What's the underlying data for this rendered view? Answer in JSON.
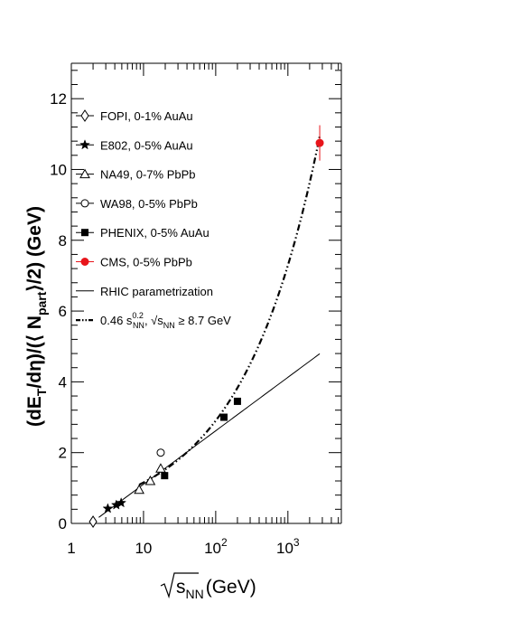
{
  "chart_data": {
    "type": "scatter",
    "title": "",
    "xlabel": "√s_NN (GeV)",
    "xlabel_parts": {
      "root": "s",
      "sub": "NN",
      "unit": "(GeV)"
    },
    "ylabel": "(dE_T/dη)/(⟨N_part⟩/2) (GeV)",
    "ylabel_parts": {
      "a": "(dE",
      "a_sub": "T",
      "b": "/dη)/(⟨ N",
      "b_sub": "part",
      "c": "⟩/2) (GeV)"
    },
    "xscale": "log",
    "xlim": [
      1,
      5500
    ],
    "ylim": [
      0,
      13
    ],
    "x_ticks": [
      {
        "value": 1,
        "label": "1"
      },
      {
        "value": 10,
        "label": "10"
      },
      {
        "value": 100,
        "label": "10",
        "exp": "2"
      },
      {
        "value": 1000,
        "label": "10",
        "exp": "3"
      }
    ],
    "y_ticks": [
      {
        "value": 0,
        "label": "0"
      },
      {
        "value": 2,
        "label": "2"
      },
      {
        "value": 4,
        "label": "4"
      },
      {
        "value": 6,
        "label": "6"
      },
      {
        "value": 8,
        "label": "8"
      },
      {
        "value": 10,
        "label": "10"
      },
      {
        "value": 12,
        "label": "12"
      }
    ],
    "grid": false,
    "legend_position": "top-left",
    "series": [
      {
        "name": "FOPI, 0-1% AuAu",
        "marker": "open-diamond",
        "color": "#000000",
        "points": [
          {
            "x": 2.0,
            "y": 0.05
          }
        ]
      },
      {
        "name": "E802, 0-5% AuAu",
        "marker": "star",
        "color": "#000000",
        "points": [
          {
            "x": 3.2,
            "y": 0.42
          },
          {
            "x": 4.2,
            "y": 0.52
          },
          {
            "x": 4.9,
            "y": 0.58
          }
        ]
      },
      {
        "name": "NA49, 0-7% PbPb",
        "marker": "open-triangle",
        "color": "#000000",
        "points": [
          {
            "x": 8.7,
            "y": 0.95
          },
          {
            "x": 12.4,
            "y": 1.2
          },
          {
            "x": 17.3,
            "y": 1.55
          }
        ]
      },
      {
        "name": "WA98, 0-5% PbPb",
        "marker": "open-circle",
        "color": "#000000",
        "points": [
          {
            "x": 17.3,
            "y": 2.0
          }
        ]
      },
      {
        "name": "PHENIX, 0-5% AuAu",
        "marker": "filled-square",
        "color": "#000000",
        "points": [
          {
            "x": 19.6,
            "y": 1.35
          },
          {
            "x": 130,
            "y": 3.0
          },
          {
            "x": 200,
            "y": 3.45
          }
        ]
      },
      {
        "name": "CMS, 0-5% PbPb",
        "marker": "filled-circle",
        "color": "#e8151b",
        "points": [
          {
            "x": 2760,
            "y": 10.75,
            "err": 0.5
          }
        ]
      }
    ],
    "curves": [
      {
        "name": "RHIC parametrization",
        "style": "solid",
        "color": "#000000",
        "function": "linear-in-ln",
        "slope": 0.656,
        "intercept": -0.404,
        "x_range": [
          2.4,
          2760
        ]
      },
      {
        "name_parts": {
          "a": "0.46 s",
          "a_exp": "0.2",
          "a_sub": "NN",
          "b": ", √s",
          "b_sub": "NN",
          "c": " ≥ 8.7 GeV"
        },
        "name": "0.46 s_NN^0.2, √s_NN ≥ 8.7 GeV",
        "style": "dash-dot",
        "color": "#000000",
        "function": "power",
        "coefficient": 0.46,
        "exponent": 0.4,
        "x_range": [
          8.7,
          2760
        ]
      }
    ]
  }
}
